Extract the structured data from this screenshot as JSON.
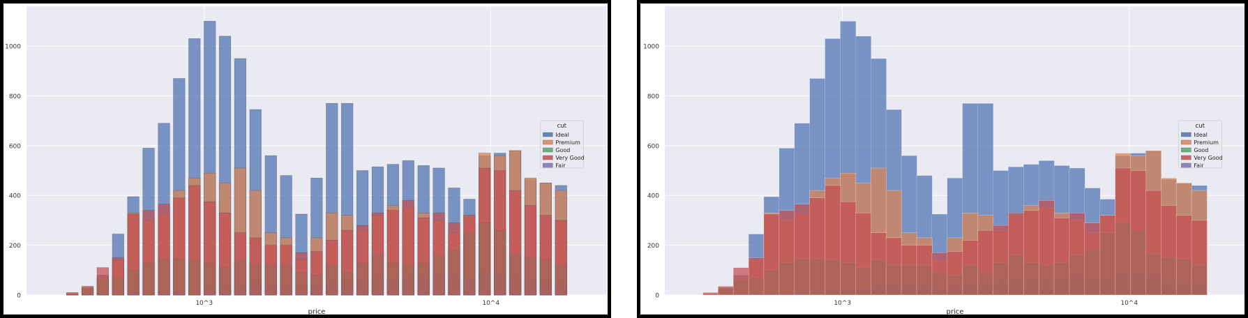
{
  "colors": {
    "background": "#eaeaf2",
    "grid": "#ffffff",
    "Ideal": "#4c72b0",
    "Premium": "#dd8452",
    "Good": "#55a868",
    "Very Good": "#c44e52",
    "Fair": "#8172b3"
  },
  "chart_data": [
    {
      "type": "bar",
      "style": "overlaid bars with thin edges",
      "xlabel": "price",
      "ylabel": "",
      "x_scale": "log",
      "ylim": [
        0,
        1160
      ],
      "y_ticks": [
        0,
        200,
        400,
        600,
        800,
        1000
      ],
      "x_ticks": [
        {
          "value": 1000,
          "label": "10^3"
        },
        {
          "value": 10000,
          "label": "10^4"
        }
      ],
      "grid": true,
      "legend": {
        "title": "cut",
        "placement": "right",
        "entries": [
          "Ideal",
          "Premium",
          "Good",
          "Very Good",
          "Fair"
        ]
      },
      "x": [
        347,
        392,
        443,
        501,
        566,
        640,
        724,
        818,
        925,
        1046,
        1182,
        1336,
        1510,
        1708,
        1931,
        2183,
        2467,
        2789,
        3153,
        3565,
        4030,
        4556,
        5150,
        5823,
        6583,
        7442,
        8413,
        9511,
        10752,
        12155,
        13741,
        15534,
        17561
      ],
      "series": [
        {
          "name": "Ideal",
          "values": [
            2,
            25,
            80,
            245,
            395,
            590,
            690,
            870,
            1030,
            1100,
            1040,
            950,
            745,
            560,
            480,
            325,
            470,
            770,
            770,
            500,
            515,
            525,
            540,
            520,
            510,
            430,
            385,
            560,
            570,
            580,
            465,
            450,
            440
          ]
        },
        {
          "name": "Premium",
          "values": [
            5,
            20,
            70,
            140,
            330,
            300,
            325,
            420,
            470,
            490,
            450,
            510,
            420,
            250,
            230,
            140,
            230,
            330,
            320,
            260,
            320,
            360,
            350,
            330,
            300,
            250,
            320,
            570,
            560,
            580,
            470,
            450,
            420
          ]
        },
        {
          "name": "Good",
          "values": [
            3,
            30,
            60,
            70,
            100,
            130,
            145,
            145,
            140,
            130,
            110,
            140,
            120,
            120,
            120,
            90,
            80,
            120,
            90,
            130,
            160,
            130,
            120,
            130,
            160,
            180,
            250,
            290,
            260,
            165,
            150,
            145,
            120
          ]
        },
        {
          "name": "Very Good",
          "values": [
            10,
            35,
            110,
            150,
            325,
            340,
            365,
            390,
            440,
            375,
            330,
            250,
            230,
            200,
            200,
            170,
            175,
            220,
            260,
            280,
            330,
            340,
            380,
            310,
            330,
            290,
            320,
            510,
            500,
            420,
            360,
            320,
            300
          ]
        },
        {
          "name": "Fair",
          "values": [
            1,
            3,
            5,
            8,
            10,
            10,
            12,
            15,
            20,
            25,
            30,
            35,
            50,
            40,
            35,
            30,
            35,
            55,
            50,
            60,
            70,
            65,
            70,
            70,
            80,
            70,
            65,
            90,
            85,
            80,
            55,
            55,
            50
          ]
        }
      ]
    },
    {
      "type": "bar",
      "style": "overlaid histogram steps",
      "xlabel": "price",
      "ylabel": "",
      "x_scale": "log",
      "ylim": [
        0,
        1160
      ],
      "y_ticks": [
        0,
        200,
        400,
        600,
        800,
        1000
      ],
      "x_ticks": [
        {
          "value": 1000,
          "label": "10^3"
        },
        {
          "value": 10000,
          "label": "10^4"
        }
      ],
      "grid": true,
      "legend": {
        "title": "cut",
        "placement": "right",
        "entries": [
          "Ideal",
          "Premium",
          "Good",
          "Very Good",
          "Fair"
        ]
      },
      "x": [
        347,
        392,
        443,
        501,
        566,
        640,
        724,
        818,
        925,
        1046,
        1182,
        1336,
        1510,
        1708,
        1931,
        2183,
        2467,
        2789,
        3153,
        3565,
        4030,
        4556,
        5150,
        5823,
        6583,
        7442,
        8413,
        9511,
        10752,
        12155,
        13741,
        15534,
        17561
      ],
      "series": [
        {
          "name": "Ideal",
          "values": [
            2,
            25,
            80,
            245,
            395,
            590,
            690,
            870,
            1030,
            1100,
            1040,
            950,
            745,
            560,
            480,
            325,
            470,
            770,
            770,
            500,
            515,
            525,
            540,
            520,
            510,
            430,
            385,
            560,
            570,
            580,
            465,
            450,
            440
          ]
        },
        {
          "name": "Premium",
          "values": [
            5,
            20,
            70,
            140,
            330,
            300,
            325,
            420,
            470,
            490,
            450,
            510,
            420,
            250,
            230,
            140,
            230,
            330,
            320,
            260,
            320,
            360,
            350,
            330,
            300,
            250,
            320,
            570,
            560,
            580,
            470,
            450,
            420
          ]
        },
        {
          "name": "Good",
          "values": [
            3,
            30,
            60,
            70,
            100,
            130,
            145,
            145,
            140,
            130,
            110,
            140,
            120,
            120,
            120,
            90,
            80,
            120,
            90,
            130,
            160,
            130,
            120,
            130,
            160,
            180,
            250,
            290,
            260,
            165,
            150,
            145,
            120
          ]
        },
        {
          "name": "Very Good",
          "values": [
            10,
            35,
            110,
            150,
            325,
            340,
            365,
            390,
            440,
            375,
            330,
            250,
            230,
            200,
            200,
            170,
            175,
            220,
            260,
            280,
            330,
            340,
            380,
            310,
            330,
            290,
            320,
            510,
            500,
            420,
            360,
            320,
            300
          ]
        },
        {
          "name": "Fair",
          "values": [
            1,
            3,
            5,
            8,
            10,
            10,
            12,
            15,
            20,
            25,
            30,
            35,
            50,
            40,
            35,
            30,
            35,
            55,
            50,
            60,
            70,
            65,
            70,
            70,
            80,
            70,
            65,
            90,
            85,
            80,
            55,
            55,
            50
          ]
        }
      ]
    }
  ]
}
